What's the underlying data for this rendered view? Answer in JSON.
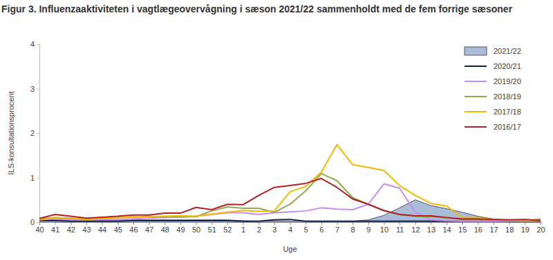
{
  "chart_data": {
    "type": "line",
    "title": "Figur 3. Influenzaaktiviteten i vagtlægeovervågning i sæson 2021/22 sammenholdt med de fem forrige sæsoner",
    "x_label": "Uge",
    "y_label": "ILS-konsultationsprocent",
    "categories": [
      "40",
      "41",
      "42",
      "43",
      "44",
      "45",
      "46",
      "47",
      "48",
      "49",
      "50",
      "51",
      "52",
      "1",
      "2",
      "3",
      "4",
      "5",
      "6",
      "7",
      "8",
      "9",
      "10",
      "11",
      "12",
      "13",
      "14",
      "15",
      "16",
      "17",
      "18",
      "19",
      "20"
    ],
    "series": [
      {
        "name": "2021/22",
        "type": "area",
        "color": "#a9bdd9",
        "values": [
          0.05,
          0.06,
          0.06,
          0.05,
          0.05,
          0.05,
          0.05,
          0.05,
          0.05,
          0.05,
          0.05,
          0.05,
          0.05,
          0.03,
          0.02,
          0.02,
          0.02,
          0.02,
          0.02,
          0.02,
          0.02,
          0.05,
          0.15,
          0.32,
          0.5,
          0.37,
          0.3,
          0.22,
          0.13,
          0.07,
          0.04,
          0.04,
          0.07
        ]
      },
      {
        "name": "2020/21",
        "color": "#0d1f4c",
        "values": [
          0.03,
          0.03,
          0.02,
          0.02,
          0.02,
          0.02,
          0.03,
          0.03,
          0.03,
          0.03,
          0.03,
          0.03,
          0.03,
          0.02,
          0.02,
          0.05,
          0.06,
          0.02,
          0.02,
          0.02,
          0.02,
          0.02,
          0.02,
          0.02,
          0.02,
          0.02,
          0.02,
          0.02,
          0.02,
          0.02,
          0.01,
          0.01,
          0.01
        ]
      },
      {
        "name": "2019/20",
        "color": "#c68cf0",
        "values": [
          0.05,
          0.07,
          0.06,
          0.05,
          0.06,
          0.06,
          0.07,
          0.09,
          0.1,
          0.11,
          0.13,
          0.17,
          0.21,
          0.21,
          0.17,
          0.21,
          0.23,
          0.25,
          0.32,
          0.29,
          0.28,
          0.4,
          0.86,
          0.76,
          0.22,
          0.05,
          0.03,
          0.02,
          0.02,
          0.02,
          0.02,
          0.02,
          0.02
        ]
      },
      {
        "name": "2018/19",
        "color": "#8fab4f",
        "values": [
          0.07,
          0.1,
          0.09,
          0.07,
          0.08,
          0.1,
          0.11,
          0.13,
          0.12,
          0.12,
          0.12,
          0.25,
          0.34,
          0.31,
          0.31,
          0.22,
          0.4,
          0.7,
          1.09,
          0.93,
          0.55,
          0.4,
          0.25,
          0.17,
          0.13,
          0.12,
          0.1,
          0.06,
          0.06,
          0.05,
          0.04,
          0.04,
          0.03
        ]
      },
      {
        "name": "2017/18",
        "color": "#f5b800",
        "values": [
          0.05,
          0.1,
          0.08,
          0.06,
          0.08,
          0.1,
          0.12,
          0.12,
          0.13,
          0.14,
          0.13,
          0.18,
          0.22,
          0.26,
          0.24,
          0.25,
          0.68,
          0.8,
          1.12,
          1.74,
          1.29,
          1.23,
          1.16,
          0.82,
          0.6,
          0.42,
          0.36,
          0.1,
          0.1,
          0.06,
          0.05,
          0.04,
          0.04
        ]
      },
      {
        "name": "2016/17",
        "color": "#b51f1f",
        "values": [
          0.08,
          0.17,
          0.13,
          0.09,
          0.11,
          0.13,
          0.16,
          0.16,
          0.2,
          0.2,
          0.33,
          0.28,
          0.4,
          0.39,
          0.6,
          0.78,
          0.82,
          0.87,
          0.98,
          0.78,
          0.52,
          0.4,
          0.26,
          0.17,
          0.14,
          0.14,
          0.1,
          0.07,
          0.07,
          0.06,
          0.05,
          0.06,
          0.03
        ]
      }
    ],
    "ylim": [
      0,
      4
    ],
    "yticks": [
      0,
      1,
      2,
      3,
      4
    ],
    "grid": false,
    "legend": "top-right"
  }
}
